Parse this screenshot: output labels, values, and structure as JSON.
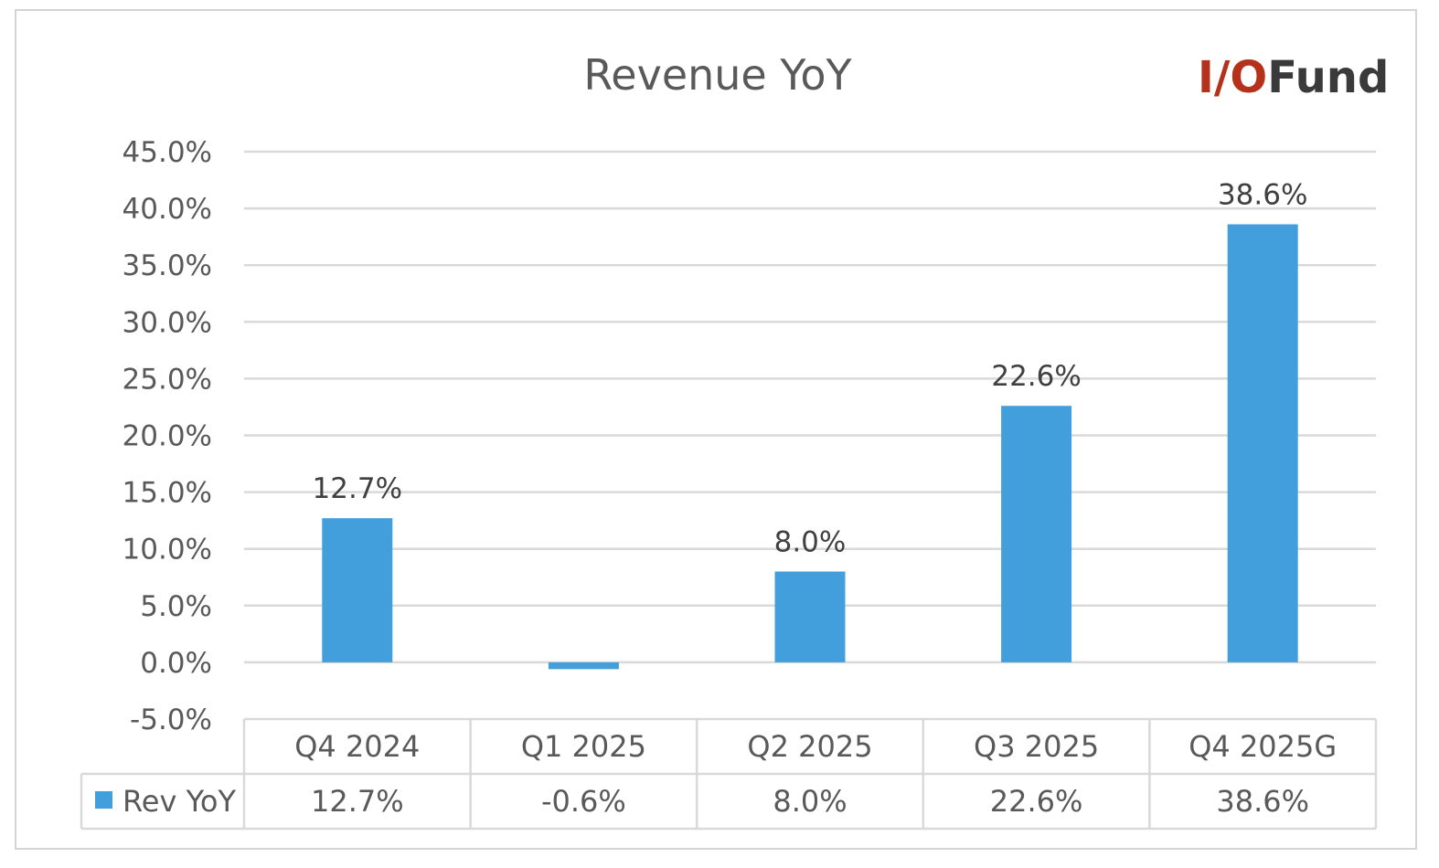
{
  "logo": {
    "part1": "I/O",
    "part2": "Fund",
    "color1": "#b5311b",
    "color2": "#3a3a3a"
  },
  "colors": {
    "bar": "#439fdc",
    "grid": "#d9d9d9",
    "text": "#595959"
  },
  "chart_data": {
    "type": "bar",
    "title": "Revenue YoY",
    "categories": [
      "Q4 2024",
      "Q1 2025",
      "Q2 2025",
      "Q3 2025",
      "Q4 2025G"
    ],
    "series": [
      {
        "name": "Rev YoY",
        "values": [
          12.7,
          -0.6,
          8.0,
          22.6,
          38.6
        ],
        "value_labels": [
          "12.7%",
          "-0.6%",
          "8.0%",
          "22.6%",
          "38.6%"
        ],
        "color": "#439fdc"
      }
    ],
    "yticks": [
      "-5.0%",
      "0.0%",
      "5.0%",
      "10.0%",
      "15.0%",
      "20.0%",
      "25.0%",
      "30.0%",
      "35.0%",
      "40.0%",
      "45.0%"
    ],
    "ylim": [
      -5,
      45
    ],
    "grid": true,
    "data_table": true,
    "xlabel": "",
    "ylabel": ""
  }
}
